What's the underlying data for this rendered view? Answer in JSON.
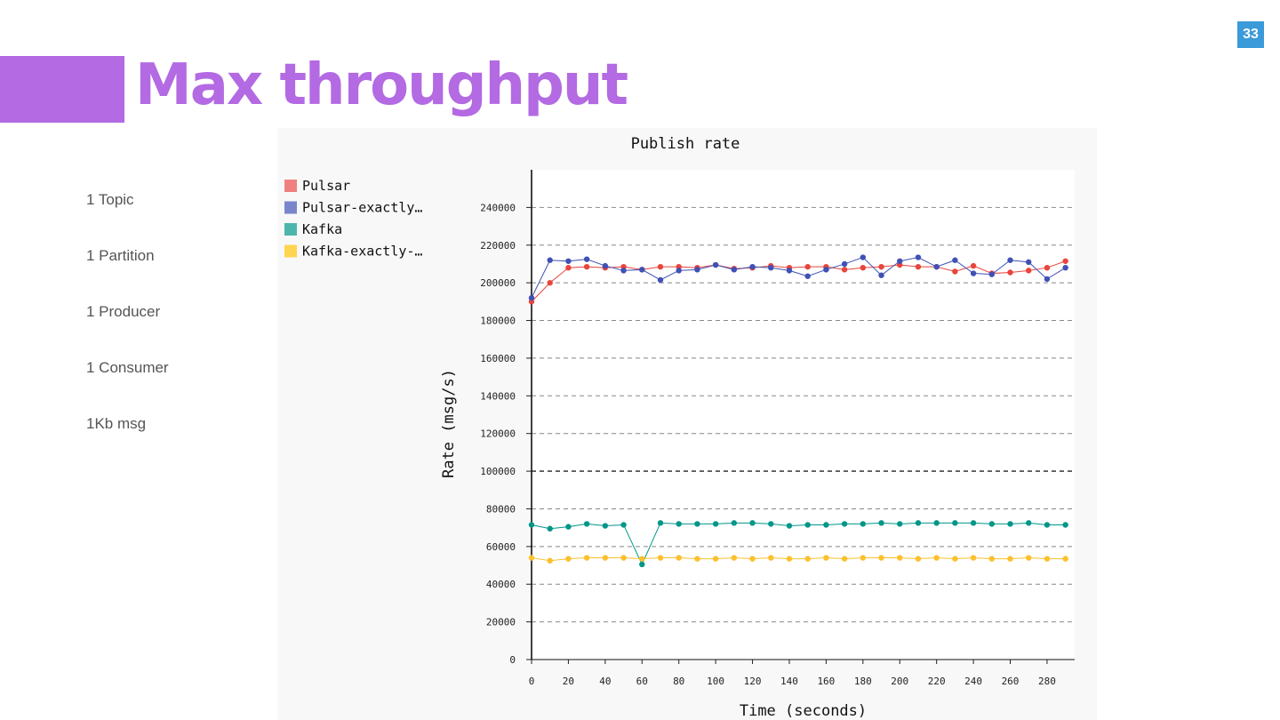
{
  "slide": {
    "page_number": "33",
    "title": "Max throughput",
    "bullets": [
      "1 Topic",
      "1 Partition",
      "1 Producer",
      "1 Consumer",
      "1Kb msg"
    ]
  },
  "colors": {
    "accent": "#b36ae2",
    "page_badge": "#3b9ad9",
    "chart_background": "#f8f8f8",
    "plot_background": "#ffffff"
  },
  "chart_data": {
    "type": "line",
    "title": "Publish rate",
    "xlabel": "Time (seconds)",
    "ylabel": "Rate (msg/s)",
    "xlim": [
      0,
      295
    ],
    "ylim": [
      0,
      260000
    ],
    "xticks": [
      0,
      20,
      40,
      60,
      80,
      100,
      120,
      140,
      160,
      180,
      200,
      220,
      240,
      260,
      280
    ],
    "yticks": [
      0,
      20000,
      40000,
      60000,
      80000,
      100000,
      120000,
      140000,
      160000,
      180000,
      200000,
      220000,
      240000
    ],
    "grid": true,
    "legend_position": "top-left",
    "x": [
      0,
      10,
      20,
      30,
      40,
      50,
      60,
      70,
      80,
      90,
      100,
      110,
      120,
      130,
      140,
      150,
      160,
      170,
      180,
      190,
      200,
      210,
      220,
      230,
      240,
      250,
      260,
      270,
      280,
      290
    ],
    "series": [
      {
        "name": "Pulsar",
        "legend_label": "Pulsar",
        "color": "#e8453c",
        "legend_color": "#f08080",
        "values": [
          190000,
          200000,
          208000,
          208500,
          208000,
          208500,
          207000,
          208500,
          208500,
          208000,
          209500,
          207500,
          208000,
          209000,
          208000,
          208500,
          208500,
          207000,
          208000,
          208500,
          209500,
          208500,
          208500,
          206000,
          209000,
          205000,
          205500,
          206500,
          208000,
          211500
        ]
      },
      {
        "name": "Pulsar-exactly-once",
        "legend_label": "Pulsar-exactly…",
        "color": "#3f51b5",
        "legend_color": "#7986cb",
        "values": [
          192000,
          212000,
          211500,
          212500,
          209000,
          206500,
          207000,
          201500,
          206500,
          207000,
          209500,
          207000,
          208500,
          208000,
          206500,
          203500,
          207000,
          210000,
          213500,
          204000,
          211500,
          213500,
          208500,
          212000,
          205000,
          204500,
          212000,
          211000,
          202000,
          208000
        ]
      },
      {
        "name": "Kafka",
        "legend_label": "Kafka",
        "color": "#009688",
        "legend_color": "#4db6ac",
        "values": [
          71500,
          69500,
          70500,
          72000,
          71000,
          71500,
          50500,
          72500,
          72000,
          72000,
          72000,
          72500,
          72500,
          72000,
          71000,
          71500,
          71500,
          72000,
          72000,
          72500,
          72000,
          72500,
          72500,
          72500,
          72500,
          72000,
          72000,
          72500,
          71500,
          71500
        ]
      },
      {
        "name": "Kafka-exactly-once",
        "legend_label": "Kafka-exactly-…",
        "color": "#fbc02d",
        "legend_color": "#ffd54f",
        "values": [
          54000,
          52500,
          53500,
          54000,
          54000,
          54000,
          53500,
          54000,
          54000,
          53500,
          53500,
          54000,
          53500,
          54000,
          53500,
          53500,
          54000,
          53500,
          54000,
          54000,
          54000,
          53500,
          54000,
          53500,
          54000,
          53500,
          53500,
          54000,
          53500,
          53500
        ]
      }
    ]
  }
}
